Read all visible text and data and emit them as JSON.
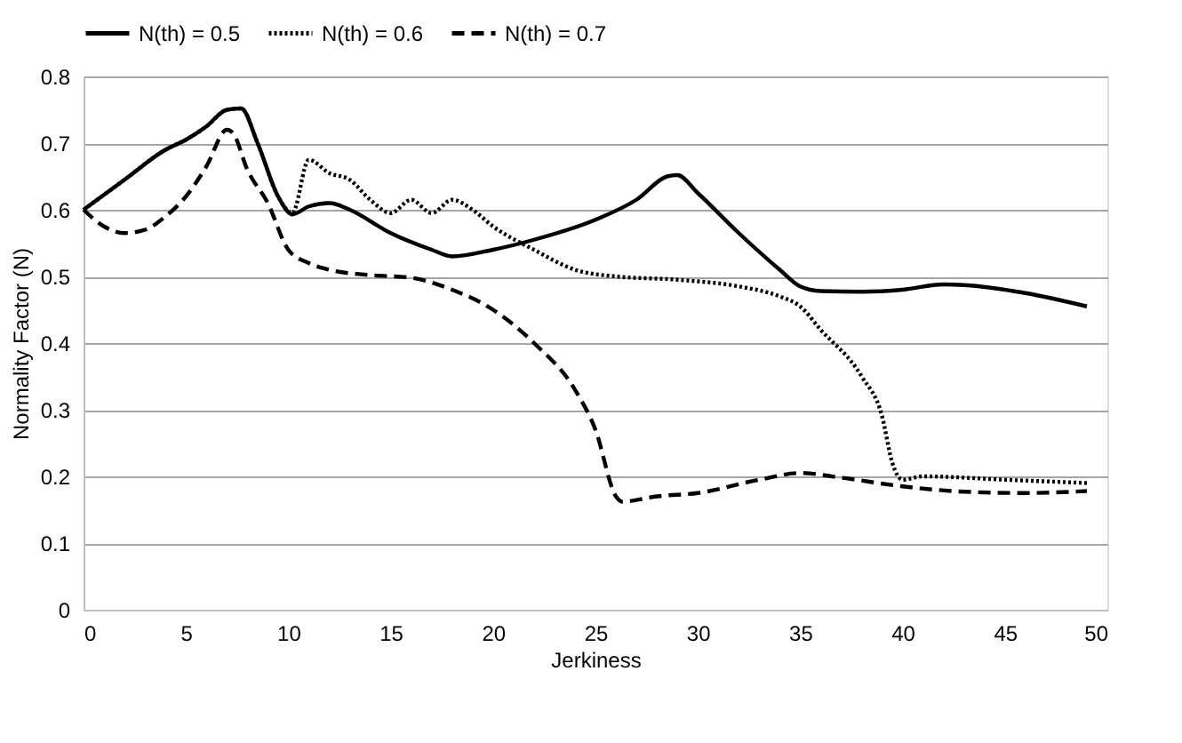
{
  "chart_data": {
    "type": "line",
    "xlabel": "Jerkiness",
    "ylabel": "Normality Factor (N)",
    "xlim": [
      0,
      50
    ],
    "xticks": [
      0,
      5,
      10,
      15,
      20,
      25,
      30,
      35,
      40,
      45,
      50
    ],
    "ylim": [
      0,
      0.8
    ],
    "yticks": [
      0,
      0.1,
      0.2,
      0.3,
      0.4,
      0.5,
      0.6,
      0.7,
      0.8
    ],
    "grid": "y",
    "legend": "top",
    "marker": "none",
    "series": [
      {
        "name": "N(th) = 0.5",
        "color": "#000000",
        "line_style": "solid",
        "x": [
          0,
          2,
          4,
          5,
          6,
          7,
          7.7,
          8.5,
          9.5,
          10.2,
          11,
          12,
          13,
          15,
          17,
          18,
          20,
          22,
          25,
          27,
          28.5,
          29,
          30,
          32,
          34,
          35,
          36,
          38,
          40,
          42,
          43,
          46,
          49
        ],
        "values": [
          0.6,
          0.645,
          0.69,
          0.705,
          0.725,
          0.75,
          0.752,
          0.7,
          0.62,
          0.593,
          0.605,
          0.61,
          0.6,
          0.565,
          0.54,
          0.53,
          0.54,
          0.555,
          0.585,
          0.615,
          0.65,
          0.652,
          0.625,
          0.565,
          0.51,
          0.485,
          0.478,
          0.477,
          0.48,
          0.488,
          0.487,
          0.475,
          0.455
        ]
      },
      {
        "name": "N(th) = 0.6",
        "color": "#000000",
        "line_style": "dotted",
        "x": [
          0,
          2,
          4,
          5,
          6,
          7,
          7.7,
          8.5,
          9.5,
          10.2,
          11,
          12,
          13,
          14,
          15,
          16,
          17,
          18,
          19,
          20,
          22,
          24,
          26,
          29,
          32,
          34,
          35,
          36,
          38,
          39,
          39.5,
          40,
          41,
          45,
          49
        ],
        "values": [
          0.6,
          0.645,
          0.69,
          0.705,
          0.725,
          0.75,
          0.752,
          0.7,
          0.62,
          0.595,
          0.675,
          0.655,
          0.645,
          0.615,
          0.595,
          0.615,
          0.595,
          0.615,
          0.6,
          0.575,
          0.54,
          0.51,
          0.5,
          0.495,
          0.485,
          0.47,
          0.455,
          0.42,
          0.35,
          0.29,
          0.22,
          0.195,
          0.2,
          0.195,
          0.19
        ]
      },
      {
        "name": "N(th) = 0.7",
        "color": "#000000",
        "line_style": "dashed",
        "x": [
          0,
          1,
          2,
          3,
          4,
          5,
          6,
          7,
          7.3,
          8,
          9,
          10,
          11,
          12,
          14,
          16,
          18,
          20,
          22,
          24,
          25,
          26,
          26.3,
          28,
          30,
          33,
          35,
          37,
          40,
          43,
          46,
          49
        ],
        "values": [
          0.6,
          0.575,
          0.565,
          0.57,
          0.59,
          0.62,
          0.665,
          0.72,
          0.715,
          0.66,
          0.61,
          0.54,
          0.52,
          0.51,
          0.502,
          0.498,
          0.48,
          0.45,
          0.4,
          0.33,
          0.27,
          0.17,
          0.162,
          0.17,
          0.175,
          0.195,
          0.205,
          0.198,
          0.185,
          0.177,
          0.175,
          0.178
        ]
      }
    ]
  }
}
